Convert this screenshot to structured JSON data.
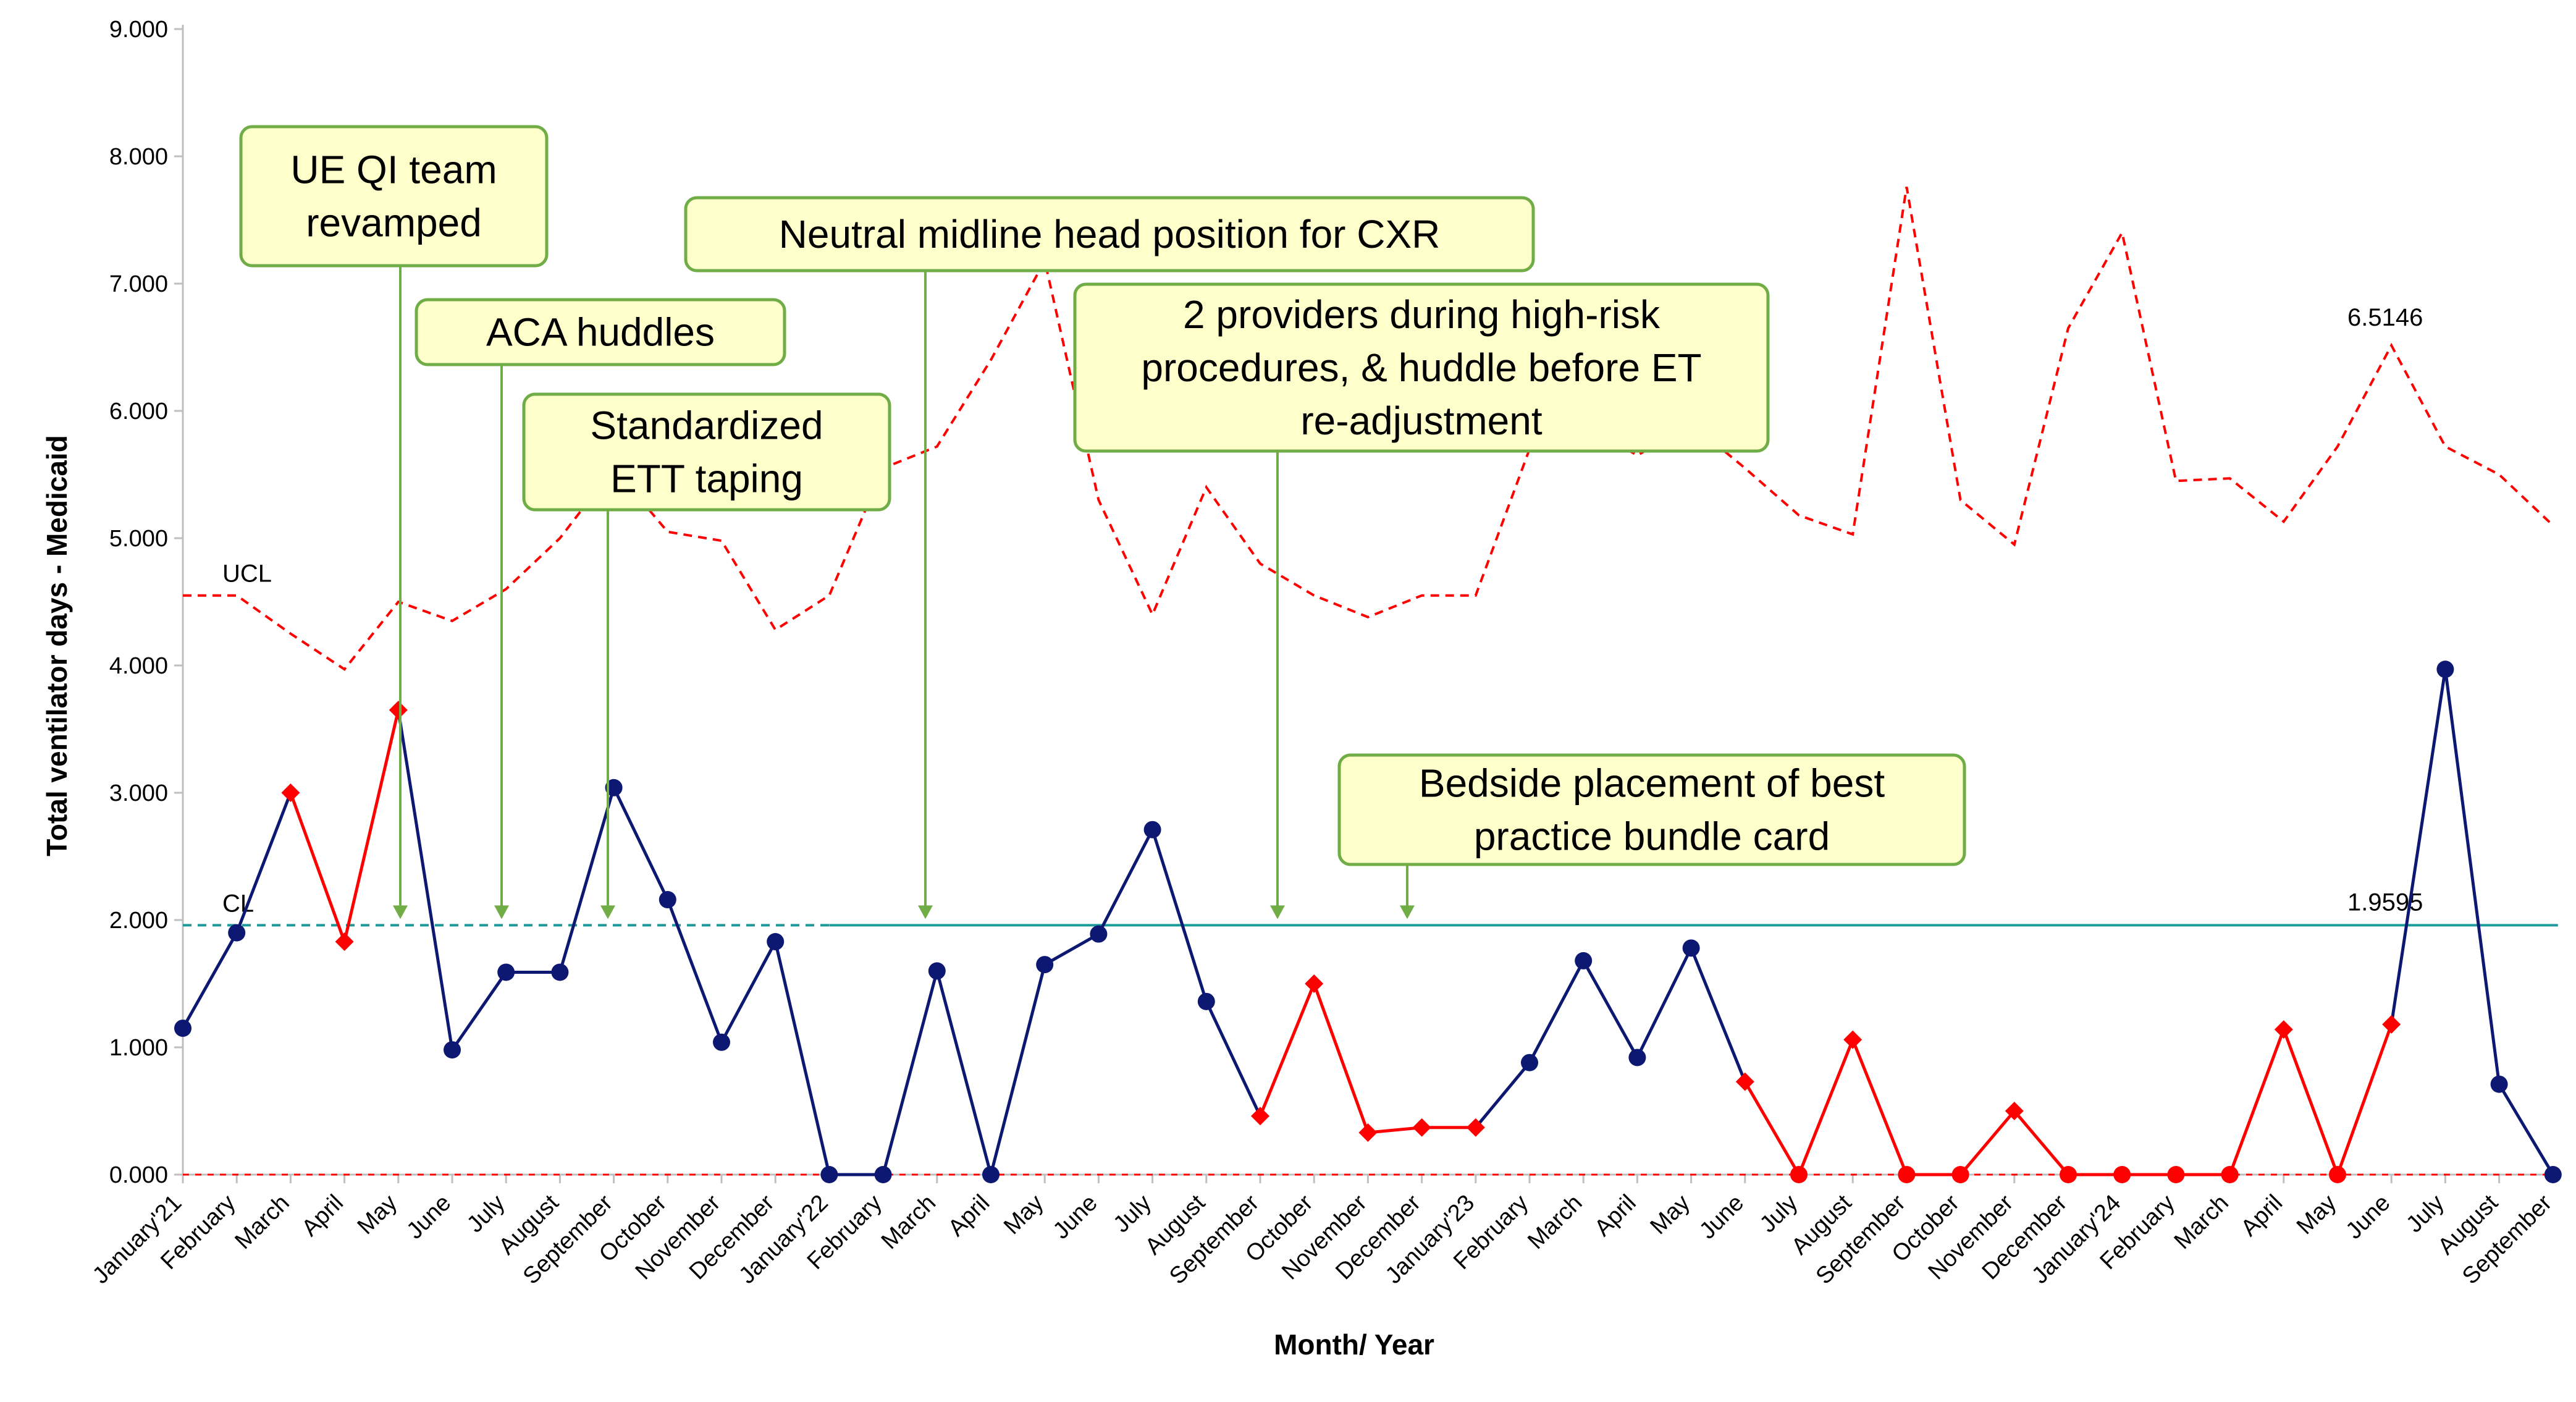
{
  "chart_data": {
    "type": "line",
    "title": "",
    "xlabel": "Month/ Year",
    "ylabel": "Total ventilator days - Medicaid",
    "ylim": [
      0,
      9
    ],
    "yticks": [
      "0.000",
      "1.000",
      "2.000",
      "3.000",
      "4.000",
      "5.000",
      "6.000",
      "7.000",
      "8.000",
      "9.000"
    ],
    "categories": [
      "January'21",
      "February",
      "March",
      "April",
      "May",
      "June",
      "July",
      "August",
      "September",
      "October",
      "November",
      "December",
      "January'22",
      "February",
      "March",
      "April",
      "May",
      "June",
      "July",
      "August",
      "September",
      "October",
      "November",
      "December",
      "January'23",
      "February",
      "March",
      "April",
      "May",
      "June",
      "July",
      "August",
      "September",
      "October",
      "November",
      "December",
      "January'24",
      "February",
      "March",
      "April",
      "May",
      "June",
      "July",
      "August",
      "September"
    ],
    "series": [
      {
        "values": [
          1.15,
          1.9,
          3.0,
          1.83,
          3.65,
          0.98,
          1.59,
          1.59,
          3.04,
          2.16,
          1.04,
          1.83,
          0.0,
          0.0,
          1.6,
          0.0,
          1.65,
          1.89,
          2.71,
          1.36,
          0.46,
          1.5,
          0.33,
          0.37,
          0.37,
          0.88,
          1.68,
          0.92,
          1.78,
          0.73,
          0.0,
          1.06,
          0.0,
          0.0,
          0.5,
          0.0,
          0.0,
          0.0,
          0.0,
          1.14,
          0.0,
          1.18,
          3.97,
          0.71,
          0.0
        ],
        "point_colors": [
          "#0d1873",
          "#0d1873",
          "#ff0000",
          "#ff0000",
          "#ff0000",
          "#0d1873",
          "#0d1873",
          "#0d1873",
          "#0d1873",
          "#0d1873",
          "#0d1873",
          "#0d1873",
          "#0d1873",
          "#0d1873",
          "#0d1873",
          "#0d1873",
          "#0d1873",
          "#0d1873",
          "#0d1873",
          "#0d1873",
          "#ff0000",
          "#ff0000",
          "#ff0000",
          "#ff0000",
          "#ff0000",
          "#0d1873",
          "#0d1873",
          "#0d1873",
          "#0d1873",
          "#ff0000",
          "#ff0000",
          "#ff0000",
          "#ff0000",
          "#ff0000",
          "#ff0000",
          "#ff0000",
          "#ff0000",
          "#ff0000",
          "#ff0000",
          "#ff0000",
          "#ff0000",
          "#ff0000",
          "#0d1873",
          "#0d1873",
          "#0d1873"
        ],
        "point_shapes": [
          "circle",
          "circle",
          "diamond",
          "diamond",
          "diamond",
          "circle",
          "circle",
          "circle",
          "circle",
          "circle",
          "circle",
          "circle",
          "circle",
          "circle",
          "circle",
          "circle",
          "circle",
          "circle",
          "circle",
          "circle",
          "diamond",
          "diamond",
          "diamond",
          "diamond",
          "diamond",
          "circle",
          "circle",
          "circle",
          "circle",
          "diamond",
          "circle",
          "diamond",
          "circle",
          "circle",
          "diamond",
          "circle",
          "circle",
          "circle",
          "circle",
          "diamond",
          "circle",
          "diamond",
          "circle",
          "circle",
          "circle"
        ]
      },
      {
        "name": "UCL",
        "values": [
          4.55,
          4.55,
          4.25,
          3.97,
          4.5,
          4.35,
          4.6,
          5.0,
          5.55,
          5.05,
          4.98,
          4.28,
          4.55,
          5.55,
          5.72,
          6.4,
          7.18,
          5.3,
          4.4,
          5.4,
          4.8,
          4.55,
          4.38,
          4.55,
          4.55,
          5.7,
          5.9,
          5.65,
          5.9,
          5.55,
          5.18,
          5.03,
          7.76,
          5.3,
          4.95,
          6.65,
          7.4,
          5.45,
          5.47,
          5.13,
          5.72,
          6.5146,
          5.72,
          5.5,
          5.1
        ]
      },
      {
        "name": "CL",
        "values": [
          1.9595,
          1.9595,
          1.9595,
          1.9595,
          1.9595,
          1.9595,
          1.9595,
          1.9595,
          1.9595,
          1.9595,
          1.9595,
          1.9595,
          1.9595,
          1.9595,
          1.9595,
          1.9595,
          1.9595,
          1.9595,
          1.9595,
          1.9595,
          1.9595,
          1.9595,
          1.9595,
          1.9595,
          1.9595,
          1.9595,
          1.9595,
          1.9595,
          1.9595,
          1.9595,
          1.9595,
          1.9595,
          1.9595,
          1.9595,
          1.9595,
          1.9595,
          1.9595,
          1.9595,
          1.9595,
          1.9595,
          1.9595,
          1.9595,
          1.9595,
          1.9595,
          1.9595
        ]
      }
    ],
    "value_labels": {
      "ucl": "UCL",
      "cl": "CL",
      "ucl_last": "6.5146",
      "cl_value": "1.9595"
    },
    "annotations": [
      {
        "lines": [
          "UE QI team",
          "revamped"
        ],
        "arrow_month": 4
      },
      {
        "lines": [
          "ACA huddles"
        ],
        "arrow_month": 6
      },
      {
        "lines": [
          "Standardized",
          "ETT taping"
        ],
        "arrow_month": 8
      },
      {
        "lines": [
          "Neutral midline head position for CXR"
        ],
        "arrow_month": 14
      },
      {
        "lines": [
          "2 providers during high-risk",
          "procedures, & huddle before ET",
          "re-adjustment"
        ],
        "arrow_month": 20
      },
      {
        "lines": [
          "Bedside placement of best",
          "practice bundle card"
        ],
        "arrow_month": 23
      }
    ],
    "colors": {
      "data_line_blue": "#0d1873",
      "special_cause_red": "#ff0000",
      "ucl_red": "#ff0000",
      "center_line": "#1a9a9a",
      "annotation_fill": "#ffffcc",
      "annotation_border": "#70ad47",
      "arrow_green": "#70ad47"
    }
  }
}
